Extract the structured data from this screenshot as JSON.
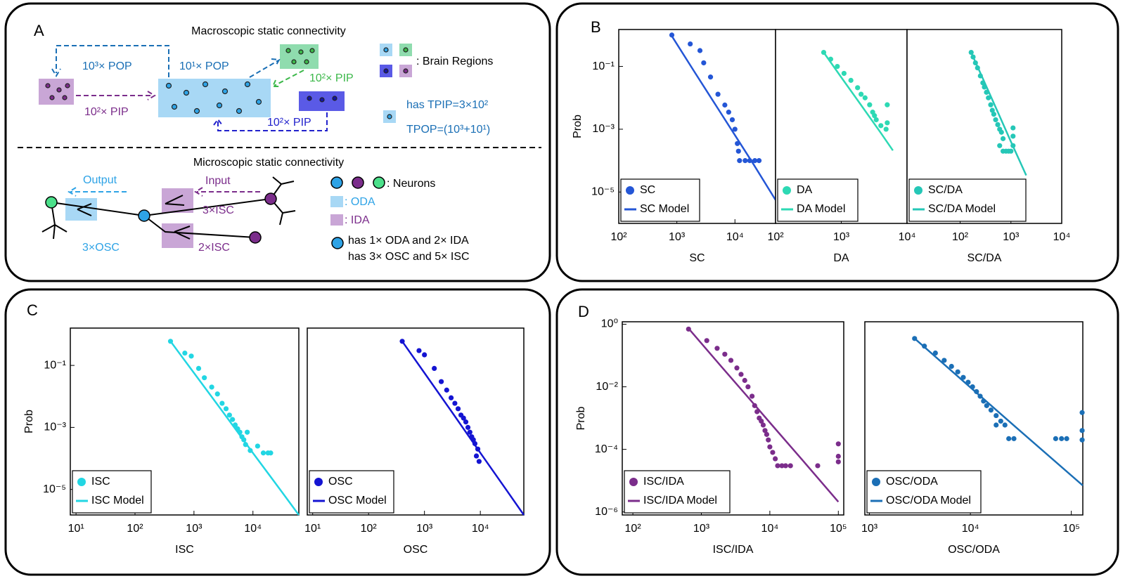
{
  "panel_labels": [
    "A",
    "B",
    "C",
    "D"
  ],
  "diagram": {
    "macro": {
      "title": "Macroscopic static connectivity",
      "pop_far": "10³× POP",
      "pop_near": "10¹× POP",
      "pip_left": "10²× PIP",
      "pip_green": "10²× PIP",
      "pip_bottom": "10²× PIP",
      "regions_legend": ": Brain Regions",
      "tpip": "has TPIP=3×10²",
      "tpop": "TPOP=(10³+10¹)"
    },
    "micro": {
      "title": "Microscopic static connectivity",
      "output": "Output",
      "input": "Input",
      "isc_top": "3×ISC",
      "isc_bottom": "2×ISC",
      "osc": "3×OSC",
      "neurons_legend": ": Neurons",
      "oda_legend": ": ODA",
      "ida_legend": ": IDA",
      "has_da": "has 1× ODA and 2× IDA",
      "has_sc": "has 3× OSC and 5× ISC"
    }
  },
  "chart_data": [
    {
      "type": "scatter",
      "xscale": "log",
      "yscale": "log",
      "ylabel": "Prob",
      "xlabel": "SC",
      "legend": "lower left",
      "xlim": [
        100,
        50000
      ],
      "ylim": [
        1e-06,
        1.5
      ],
      "xticks": [
        {
          "value": 100,
          "label": "10²"
        },
        {
          "value": 1000,
          "label": "10³"
        },
        {
          "value": 10000,
          "label": "10⁴"
        }
      ],
      "yticks": [
        {
          "value": 0.1,
          "label": "10⁻¹"
        },
        {
          "value": 0.001,
          "label": "10⁻³"
        },
        {
          "value": 1e-05,
          "label": "10⁻⁵"
        }
      ],
      "series": [
        {
          "name": "SC",
          "mode": "markers",
          "color": "#2456d6",
          "x": [
            820,
            1700,
            2500,
            2900,
            3800,
            5100,
            6700,
            7800,
            9000,
            10000,
            11000,
            11500,
            12000,
            15000,
            18000,
            22000,
            26000
          ],
          "values": [
            1.0,
            0.52,
            0.32,
            0.13,
            0.046,
            0.013,
            0.0059,
            0.0035,
            0.002,
            0.001,
            0.00035,
            0.0002,
            0.0001,
            0.0001,
            0.0001,
            0.0001,
            0.0001
          ]
        },
        {
          "name": "SC Model",
          "mode": "line",
          "color": "#2456d6",
          "x": [
            800,
            2000,
            5000,
            10000,
            20000,
            50000
          ],
          "values": [
            1.0,
            0.068,
            0.0048,
            0.00065,
            8.7e-05,
            5.6e-06
          ]
        }
      ]
    },
    {
      "type": "scatter",
      "xscale": "log",
      "yscale": "log",
      "xlabel": "DA",
      "legend": "lower left",
      "xlim": [
        100,
        10000
      ],
      "ylim": [
        1e-06,
        1.5
      ],
      "xticks": [
        {
          "value": 100,
          "label": "10²"
        },
        {
          "value": 1000,
          "label": "10³"
        },
        {
          "value": 10000,
          "label": "10⁴"
        }
      ],
      "series": [
        {
          "name": "DA",
          "mode": "markers",
          "color": "#2dd9b4",
          "x": [
            540,
            690,
            870,
            1100,
            1400,
            1770,
            2000,
            2300,
            2700,
            3000,
            3200,
            3400,
            4000,
            4800,
            5000,
            5000
          ],
          "values": [
            0.28,
            0.17,
            0.1,
            0.06,
            0.036,
            0.021,
            0.013,
            0.01,
            0.006,
            0.0035,
            0.0027,
            0.002,
            0.0013,
            0.001,
            0.006,
            0.0016
          ]
        },
        {
          "name": "DA Model",
          "mode": "line",
          "color": "#2dd9b4",
          "x": [
            540,
            1000,
            2000,
            4000,
            6100
          ],
          "values": [
            0.28,
            0.045,
            0.0059,
            0.00076,
            0.00021
          ]
        }
      ]
    },
    {
      "type": "scatter",
      "xscale": "log",
      "yscale": "log",
      "xlabel": "SC/DA",
      "legend": "lower left",
      "xlim": [
        9,
        10000
      ],
      "ylim": [
        1e-06,
        1.5
      ],
      "xticks": [
        {
          "value": 100,
          "label": "10²"
        },
        {
          "value": 1000,
          "label": "10³"
        },
        {
          "value": 10000,
          "label": "10⁴"
        }
      ],
      "series": [
        {
          "name": "SC/DA",
          "mode": "markers",
          "color": "#25c7b7",
          "x": [
            165,
            180,
            200,
            220,
            250,
            280,
            300,
            330,
            360,
            400,
            430,
            460,
            500,
            550,
            600,
            650,
            700,
            600,
            700,
            800,
            900,
            1000,
            1100,
            1100,
            1100
          ],
          "values": [
            0.28,
            0.2,
            0.13,
            0.09,
            0.05,
            0.03,
            0.022,
            0.015,
            0.01,
            0.006,
            0.004,
            0.003,
            0.002,
            0.0014,
            0.001,
            0.0008,
            0.0005,
            0.0003,
            0.0002,
            0.0002,
            0.0002,
            0.0002,
            0.0003,
            0.0006,
            0.0011
          ]
        },
        {
          "name": "SC/DA Model",
          "mode": "line",
          "color": "#25c7b7",
          "x": [
            165,
            300,
            600,
            1000,
            2000
          ],
          "values": [
            0.28,
            0.032,
            0.0026,
            0.0004,
            3.4e-05
          ]
        }
      ]
    },
    {
      "type": "scatter",
      "xscale": "log",
      "yscale": "log",
      "ylabel": "Prob",
      "xlabel": "ISC",
      "legend": "lower left",
      "xlim": [
        8,
        60000
      ],
      "ylim": [
        1.5e-06,
        1.6
      ],
      "xticks": [
        {
          "value": 10,
          "label": "10¹"
        },
        {
          "value": 100,
          "label": "10²"
        },
        {
          "value": 1000,
          "label": "10³"
        },
        {
          "value": 10000,
          "label": "10⁴"
        }
      ],
      "yticks": [
        {
          "value": 0.1,
          "label": "10⁻¹"
        },
        {
          "value": 0.001,
          "label": "10⁻³"
        },
        {
          "value": 1e-05,
          "label": "10⁻⁵"
        }
      ],
      "series": [
        {
          "name": "ISC",
          "mode": "markers",
          "color": "#22d6e3",
          "x": [
            400,
            700,
            900,
            1200,
            1500,
            2000,
            2500,
            3000,
            3500,
            4000,
            4500,
            5000,
            5500,
            6000,
            6500,
            7000,
            7500,
            8000,
            9000,
            12000,
            15000,
            18000,
            20000
          ],
          "values": [
            0.6,
            0.25,
            0.2,
            0.08,
            0.04,
            0.02,
            0.012,
            0.006,
            0.004,
            0.0025,
            0.0018,
            0.0012,
            0.0009,
            0.0007,
            0.0005,
            0.0004,
            0.00028,
            0.0007,
            0.00018,
            0.00025,
            0.00015,
            0.00015,
            0.00015
          ]
        },
        {
          "name": "ISC Model",
          "mode": "line",
          "color": "#22d6e3",
          "x": [
            400,
            1000,
            3000,
            10000,
            30000,
            60000
          ],
          "values": [
            0.6,
            0.057,
            0.0034,
            0.00015,
            9e-06,
            1.5e-06
          ]
        }
      ]
    },
    {
      "type": "scatter",
      "xscale": "log",
      "yscale": "log",
      "xlabel": "OSC",
      "legend": "lower left",
      "xlim": [
        8,
        60000
      ],
      "ylim": [
        1.5e-06,
        1.6
      ],
      "xticks": [
        {
          "value": 10,
          "label": "10¹"
        },
        {
          "value": 100,
          "label": "10²"
        },
        {
          "value": 1000,
          "label": "10³"
        },
        {
          "value": 10000,
          "label": "10⁴"
        }
      ],
      "series": [
        {
          "name": "OSC",
          "mode": "markers",
          "color": "#1414d2",
          "x": [
            400,
            800,
            1000,
            1500,
            2000,
            2500,
            3000,
            3500,
            4000,
            4500,
            5000,
            5500,
            6000,
            6500,
            7000,
            7500,
            8000,
            9000,
            8500,
            9500
          ],
          "values": [
            0.6,
            0.3,
            0.22,
            0.08,
            0.03,
            0.016,
            0.009,
            0.006,
            0.004,
            0.0025,
            0.002,
            0.0015,
            0.001,
            0.0007,
            0.0005,
            0.0004,
            0.0003,
            0.0002,
            0.00012,
            8e-05
          ]
        },
        {
          "name": "OSC Model",
          "mode": "line",
          "color": "#1414d2",
          "x": [
            400,
            1000,
            3000,
            10000,
            30000,
            60000
          ],
          "values": [
            0.6,
            0.057,
            0.0034,
            0.00015,
            9e-06,
            1.5e-06
          ]
        }
      ]
    },
    {
      "type": "scatter",
      "xscale": "log",
      "yscale": "log",
      "ylabel": "Prob",
      "xlabel": "ISC/IDA",
      "legend": "lower left",
      "xlim": [
        70,
        120000
      ],
      "ylim": [
        8e-07,
        1.2
      ],
      "xticks": [
        {
          "value": 100,
          "label": "10²"
        },
        {
          "value": 1000,
          "label": "10³"
        },
        {
          "value": 10000,
          "label": "10⁴"
        },
        {
          "value": 100000,
          "label": "10⁵"
        }
      ],
      "yticks": [
        {
          "value": 1,
          "label": "10⁰"
        },
        {
          "value": 0.01,
          "label": "10⁻²"
        },
        {
          "value": 0.0001,
          "label": "10⁻⁴"
        },
        {
          "value": 1e-06,
          "label": "10⁻⁶"
        }
      ],
      "series": [
        {
          "name": "ISC/IDA",
          "mode": "markers",
          "color": "#7b2d8b",
          "x": [
            650,
            1200,
            1700,
            2200,
            2700,
            3300,
            3800,
            4300,
            4800,
            5500,
            6000,
            6500,
            7000,
            7500,
            8000,
            8500,
            9000,
            9500,
            10000,
            11000,
            12000,
            13000,
            15000,
            17000,
            20000,
            50000,
            100000,
            100000,
            100000
          ],
          "values": [
            0.7,
            0.3,
            0.17,
            0.11,
            0.07,
            0.04,
            0.025,
            0.016,
            0.01,
            0.005,
            0.0025,
            0.0016,
            0.001,
            0.0008,
            0.0006,
            0.0004,
            0.0003,
            0.0002,
            0.00012,
            8e-05,
            5e-05,
            3e-05,
            3e-05,
            3e-05,
            3e-05,
            3e-05,
            0.00015,
            6e-05,
            4e-05
          ]
        },
        {
          "name": "ISC/IDA Model",
          "mode": "line",
          "color": "#7b2d8b",
          "x": [
            650,
            2000,
            5000,
            10000,
            30000,
            100000
          ],
          "values": [
            0.73,
            0.042,
            0.0042,
            0.00072,
            4.5e-05,
            2.1e-06
          ]
        }
      ]
    },
    {
      "type": "scatter",
      "xscale": "log",
      "yscale": "log",
      "xlabel": "OSC/ODA",
      "legend": "lower left",
      "xlim": [
        900,
        130000
      ],
      "ylim": [
        8e-07,
        1.2
      ],
      "xticks": [
        {
          "value": 1000,
          "label": "10³"
        },
        {
          "value": 10000,
          "label": "10⁴"
        },
        {
          "value": 100000,
          "label": "10⁵"
        }
      ],
      "series": [
        {
          "name": "OSC/ODA",
          "mode": "markers",
          "color": "#1b6fb6",
          "x": [
            2800,
            3500,
            4500,
            5500,
            6500,
            7500,
            8500,
            9500,
            10500,
            11500,
            12500,
            13500,
            14500,
            16000,
            18000,
            20000,
            18000,
            22000,
            24000,
            27000,
            70000,
            80000,
            90000,
            128000,
            128000,
            128000
          ],
          "values": [
            0.35,
            0.2,
            0.12,
            0.07,
            0.045,
            0.03,
            0.02,
            0.014,
            0.01,
            0.007,
            0.005,
            0.0035,
            0.0025,
            0.0018,
            0.0012,
            0.0008,
            0.0006,
            0.0006,
            0.00022,
            0.00022,
            0.00022,
            0.00022,
            0.00022,
            0.0015,
            0.0004,
            0.0002
          ]
        },
        {
          "name": "OSC/ODA Model",
          "mode": "line",
          "color": "#1b6fb6",
          "x": [
            2800,
            10000,
            30000,
            130000
          ],
          "values": [
            0.35,
            0.0096,
            0.00043,
            7e-06
          ]
        }
      ]
    }
  ]
}
